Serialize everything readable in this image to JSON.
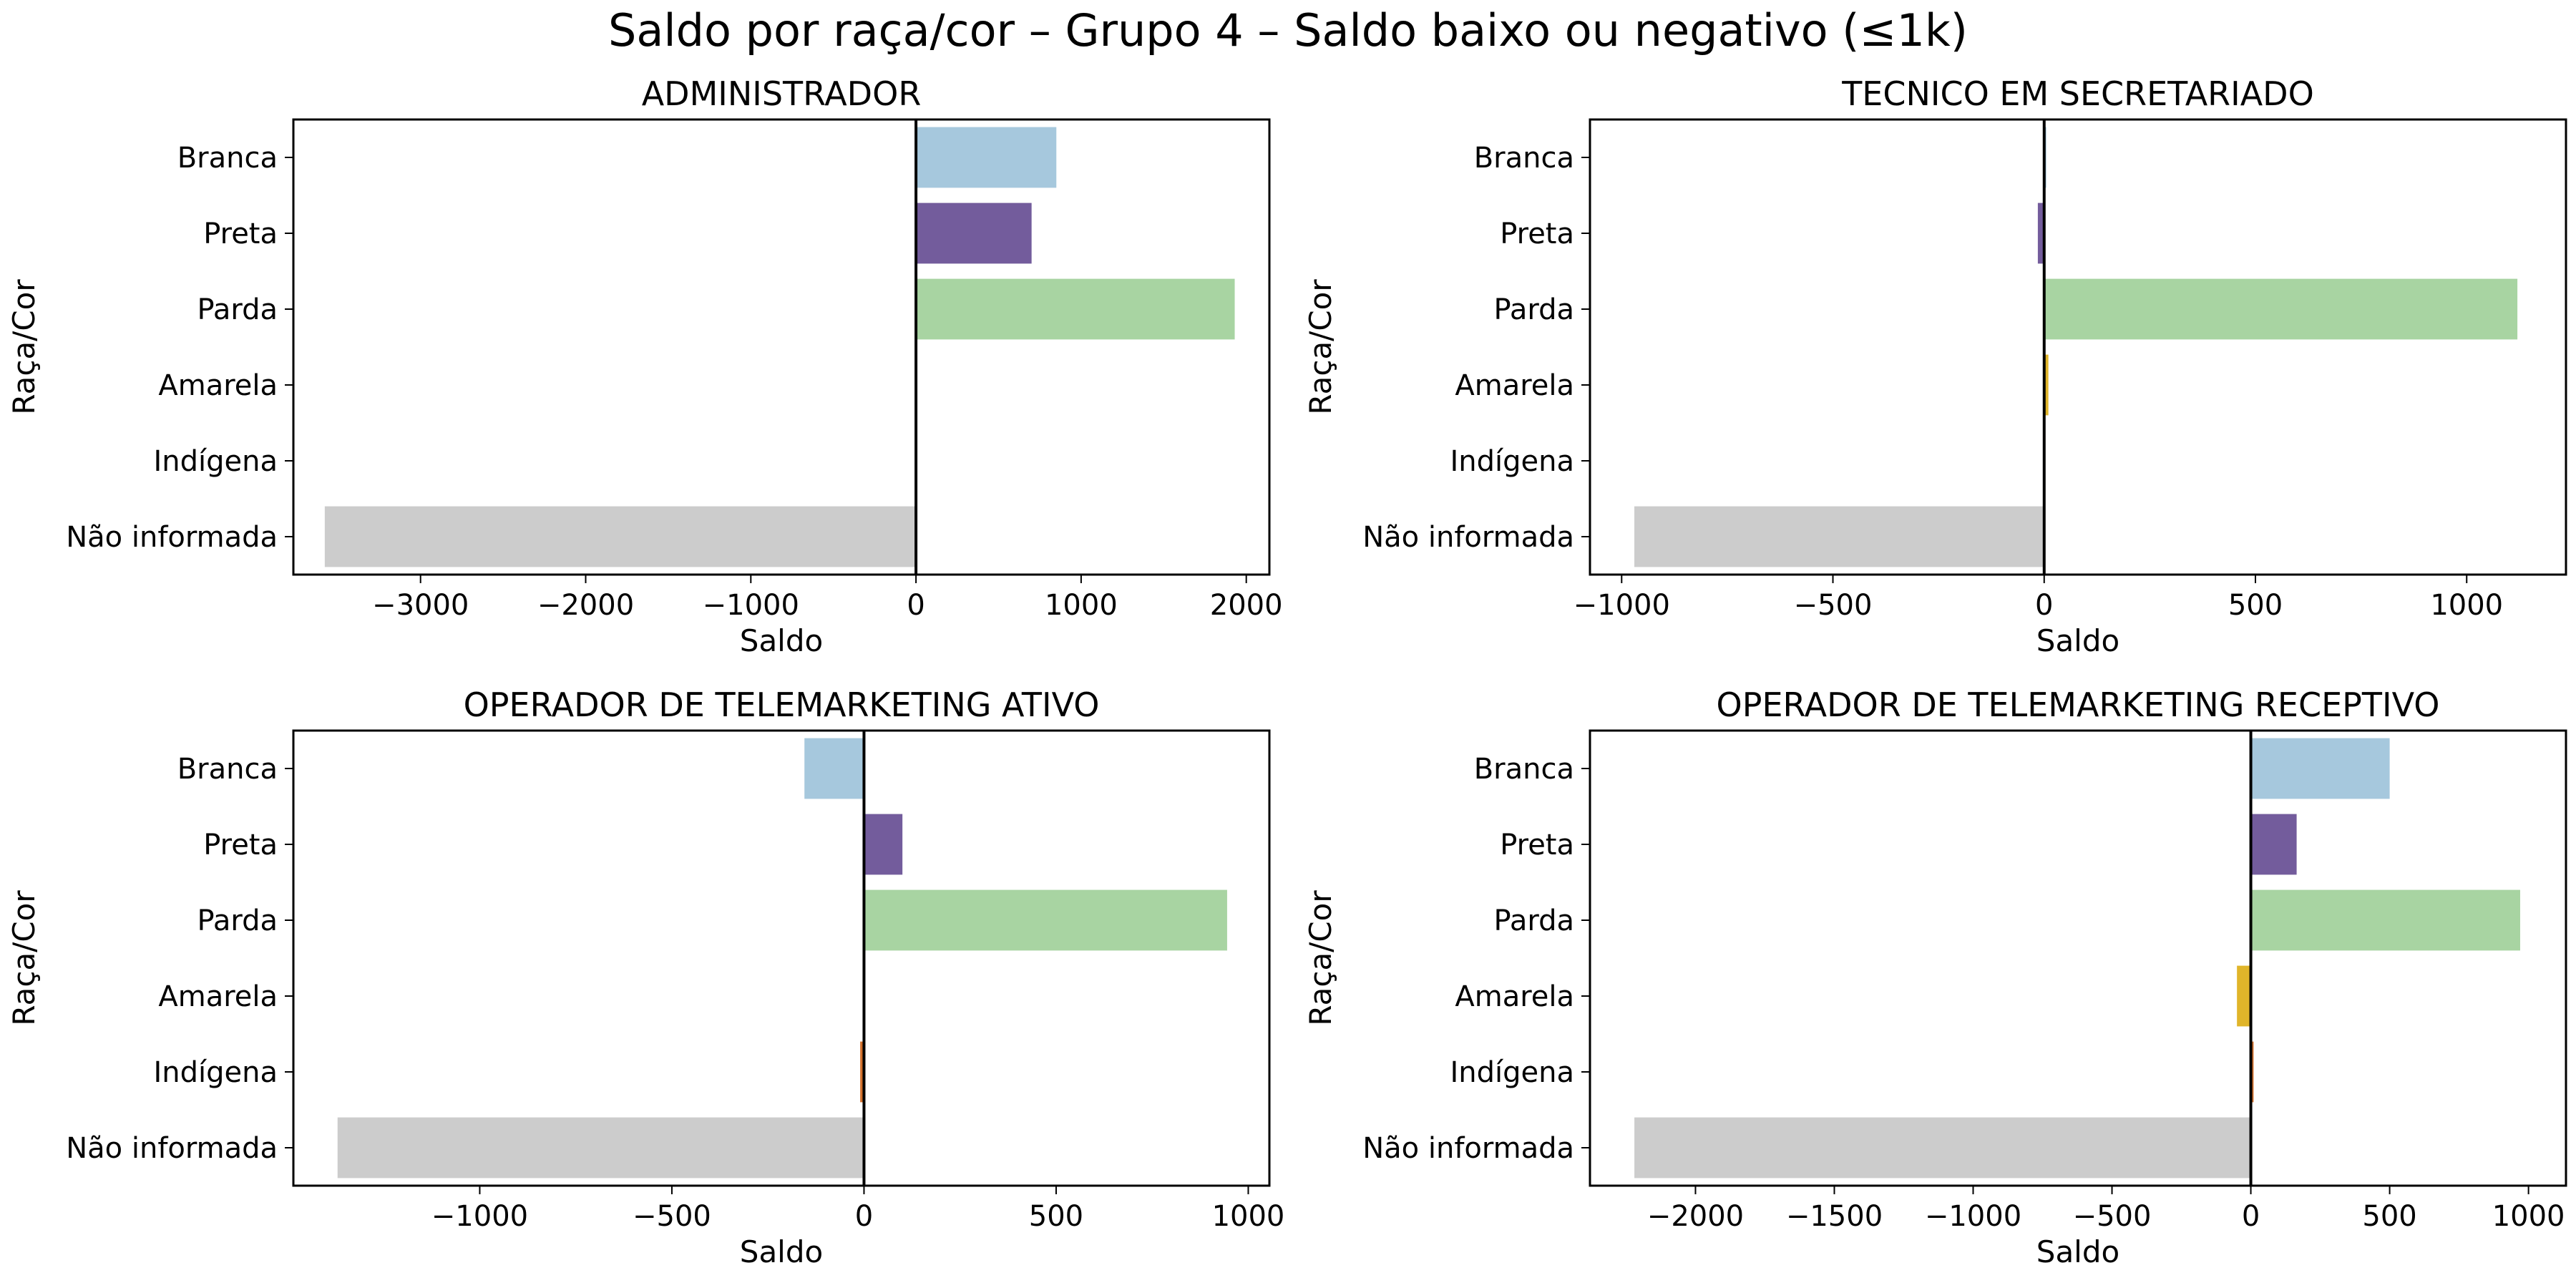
{
  "figure": {
    "title": "Saldo por raça/cor – Grupo 4 – Saldo baixo ou negativo (≤1k)"
  },
  "colors": {
    "Branca": "#a6c8dd",
    "Preta": "#735c9c",
    "Parda": "#a8d4a2",
    "Amarela": "#e0b52a",
    "Indígena": "#d4722e",
    "Não informada": "#cccccc"
  },
  "chart_data": [
    {
      "type": "bar",
      "orientation": "horizontal",
      "title": "ADMINISTRADOR",
      "xlabel": "Saldo",
      "ylabel": "Raça/Cor",
      "categories": [
        "Branca",
        "Preta",
        "Parda",
        "Amarela",
        "Indígena",
        "Não informada"
      ],
      "values": [
        850,
        700,
        1930,
        -5,
        0,
        -3580
      ],
      "xlim": [
        -3770,
        2140
      ],
      "xticks": [
        -3000,
        -2000,
        -1000,
        0,
        1000,
        2000
      ],
      "xtick_labels": [
        "−3000",
        "−2000",
        "−1000",
        "0",
        "1000",
        "2000"
      ],
      "grid": false,
      "legend": "none"
    },
    {
      "type": "bar",
      "orientation": "horizontal",
      "title": "TECNICO EM SECRETARIADO",
      "xlabel": "Saldo",
      "ylabel": "Raça/Cor",
      "categories": [
        "Branca",
        "Preta",
        "Parda",
        "Amarela",
        "Indígena",
        "Não informada"
      ],
      "values": [
        5,
        -15,
        1120,
        10,
        3,
        -970
      ],
      "xlim": [
        -1075,
        1235
      ],
      "xticks": [
        -1000,
        -500,
        0,
        500,
        1000
      ],
      "xtick_labels": [
        "−1000",
        "−500",
        "0",
        "500",
        "1000"
      ],
      "grid": false,
      "legend": "none"
    },
    {
      "type": "bar",
      "orientation": "horizontal",
      "title": "OPERADOR DE TELEMARKETING ATIVO",
      "xlabel": "Saldo",
      "ylabel": "Raça/Cor",
      "categories": [
        "Branca",
        "Preta",
        "Parda",
        "Amarela",
        "Indígena",
        "Não informada"
      ],
      "values": [
        -155,
        100,
        945,
        -3,
        -10,
        -1370
      ],
      "xlim": [
        -1485,
        1055
      ],
      "xticks": [
        -1000,
        -500,
        0,
        500,
        1000
      ],
      "xtick_labels": [
        "−1000",
        "−500",
        "0",
        "500",
        "1000"
      ],
      "grid": false,
      "legend": "none"
    },
    {
      "type": "bar",
      "orientation": "horizontal",
      "title": "OPERADOR DE TELEMARKETING RECEPTIVO",
      "xlabel": "Saldo",
      "ylabel": "Raça/Cor",
      "categories": [
        "Branca",
        "Preta",
        "Parda",
        "Amarela",
        "Indígena",
        "Não informada"
      ],
      "values": [
        500,
        165,
        970,
        -50,
        10,
        -2220
      ],
      "xlim": [
        -2380,
        1135
      ],
      "xticks": [
        -2000,
        -1500,
        -1000,
        -500,
        0,
        500,
        1000
      ],
      "xtick_labels": [
        "−2000",
        "−1500",
        "−1000",
        "−500",
        "0",
        "500",
        "1000"
      ],
      "grid": false,
      "legend": "none"
    }
  ]
}
